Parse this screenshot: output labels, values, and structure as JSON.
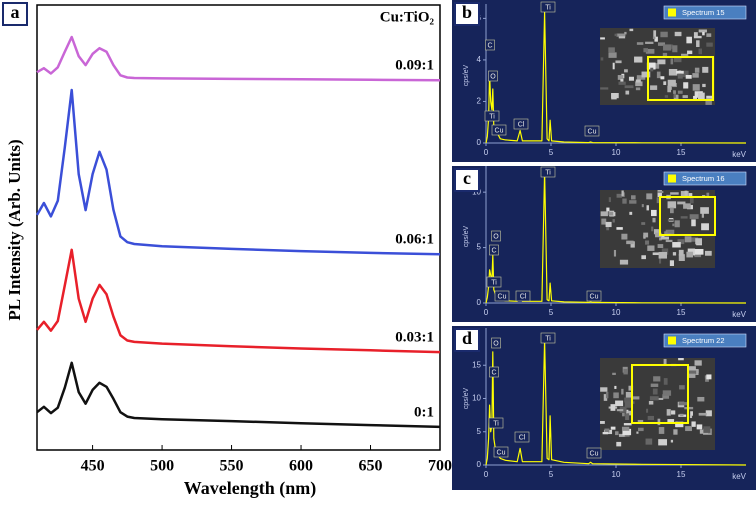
{
  "chart_data": [
    {
      "type": "line",
      "panel": "a",
      "xlabel": "Wavelength (nm)",
      "ylabel": "PL Intensity (Arb. Units)",
      "legend": "inline",
      "legend_title": "Cu:TiO₂",
      "grid": false,
      "x": [
        410,
        415,
        420,
        425,
        430,
        435,
        440,
        445,
        450,
        455,
        460,
        465,
        470,
        475,
        480,
        500,
        550,
        600,
        650,
        700
      ],
      "xlim": [
        410,
        700
      ],
      "xticks": [
        450,
        500,
        550,
        600,
        650,
        700
      ],
      "ylim": [
        0,
        100
      ],
      "yticks": [],
      "series": [
        {
          "name": "0.09:1",
          "color": "#c966d6",
          "values": [
            84.9,
            85.8,
            84.6,
            86,
            89.5,
            92.8,
            88.5,
            86.5,
            89,
            90.3,
            89.5,
            86.5,
            84.2,
            83.7,
            83.6,
            83.5,
            83.4,
            83.3,
            83.2,
            83.1
          ]
        },
        {
          "name": "0.06:1",
          "color": "#3b4fd8",
          "values": [
            52.8,
            55.5,
            52.5,
            56,
            68,
            80.9,
            62,
            53.9,
            62,
            67,
            63,
            54,
            48,
            46.7,
            46.3,
            45.8,
            45.2,
            44.7,
            44.3,
            44
          ]
        },
        {
          "name": "0.03:1",
          "color": "#e8202a",
          "values": [
            27,
            28.8,
            26.8,
            29,
            37,
            45,
            34,
            28.8,
            34,
            37.1,
            35,
            30,
            25.8,
            24.6,
            24.3,
            23.9,
            23.3,
            22.8,
            22.4,
            22
          ]
        },
        {
          "name": "0:1",
          "color": "#111111",
          "values": [
            8.5,
            9.7,
            8.3,
            9.5,
            14,
            19.6,
            13,
            10.4,
            13.5,
            15.1,
            14.2,
            11.5,
            8.5,
            7.5,
            7.2,
            6.9,
            6.5,
            6,
            5.6,
            5.2
          ]
        }
      ]
    },
    {
      "type": "line",
      "panel": "b",
      "xlabel": "keV",
      "ylabel": "cps/eV",
      "legend": "upper right",
      "background": "#16245a",
      "x": [
        0,
        0.1,
        0.2,
        0.28,
        0.36,
        0.45,
        0.52,
        0.6,
        0.75,
        0.93,
        1.1,
        1.5,
        2.4,
        2.62,
        2.8,
        4.3,
        4.51,
        4.7,
        4.85,
        4.93,
        5.05,
        6,
        7.9,
        8.04,
        8.2,
        12,
        20
      ],
      "xlim": [
        0,
        20
      ],
      "xticks": [
        0,
        5,
        10,
        15
      ],
      "ylim": [
        0,
        6.5
      ],
      "yticks": [
        0,
        2,
        4,
        6
      ],
      "annotations": [
        "C",
        "O",
        "Ti",
        "Cu",
        "Cl",
        "Ti",
        "Cu"
      ],
      "series": [
        {
          "name": "Spectrum 15",
          "color": "#ffff00",
          "values": [
            0,
            0.3,
            1.2,
            3.3,
            2.0,
            1.6,
            2.6,
            0.8,
            0.5,
            0.4,
            0.2,
            0.15,
            0.1,
            0.6,
            0.1,
            0.1,
            6.3,
            0.2,
            0.1,
            1.1,
            0.1,
            0.05,
            0.02,
            0.05,
            0.02,
            0.01,
            0
          ]
        }
      ]
    },
    {
      "type": "line",
      "panel": "c",
      "xlabel": "keV",
      "ylabel": "cps/eV",
      "legend": "upper right",
      "background": "#16245a",
      "x": [
        0,
        0.1,
        0.2,
        0.28,
        0.36,
        0.45,
        0.52,
        0.6,
        0.75,
        0.93,
        1.1,
        1.5,
        2.4,
        2.62,
        2.8,
        4.3,
        4.51,
        4.7,
        4.85,
        4.93,
        5.05,
        6,
        7.9,
        8.04,
        8.2,
        12,
        20
      ],
      "xlim": [
        0,
        20
      ],
      "xticks": [
        0,
        5,
        10,
        15
      ],
      "ylim": [
        0,
        12
      ],
      "yticks": [
        0,
        5,
        10
      ],
      "annotations": [
        "Ti",
        "O",
        "C",
        "Ti",
        "Cu",
        "Cl",
        "Cu"
      ],
      "series": [
        {
          "name": "Spectrum 16",
          "color": "#ffff00",
          "values": [
            0,
            0.5,
            1.5,
            3.0,
            2.5,
            2.0,
            4.3,
            1.2,
            0.7,
            0.5,
            0.3,
            0.2,
            0.15,
            0.9,
            0.15,
            0.15,
            11.8,
            0.3,
            0.2,
            1.8,
            0.2,
            0.1,
            0.05,
            0.1,
            0.05,
            0.02,
            0
          ]
        }
      ]
    },
    {
      "type": "line",
      "panel": "d",
      "xlabel": "keV",
      "ylabel": "cps/eV",
      "legend": "upper right",
      "background": "#16245a",
      "x": [
        0,
        0.1,
        0.2,
        0.28,
        0.36,
        0.45,
        0.52,
        0.6,
        0.75,
        0.93,
        1.1,
        1.5,
        2.4,
        2.62,
        2.8,
        4.3,
        4.51,
        4.7,
        4.85,
        4.93,
        5.05,
        6,
        7.9,
        8.04,
        8.2,
        12,
        20
      ],
      "xlim": [
        0,
        20
      ],
      "xticks": [
        0,
        5,
        10,
        15
      ],
      "ylim": [
        0,
        20
      ],
      "yticks": [
        0,
        5,
        10,
        15
      ],
      "annotations": [
        "O",
        "C",
        "Ti",
        "Cu",
        "Cl",
        "Ti",
        "Cu"
      ],
      "series": [
        {
          "name": "Spectrum 22",
          "color": "#ffff00",
          "values": [
            0,
            1,
            4,
            9,
            5,
            6,
            17,
            4,
            2,
            1.5,
            1,
            0.7,
            0.5,
            2.5,
            0.5,
            0.5,
            18.8,
            1,
            0.8,
            7.4,
            0.8,
            0.4,
            0.2,
            0.4,
            0.2,
            0.1,
            0
          ]
        }
      ]
    }
  ]
}
